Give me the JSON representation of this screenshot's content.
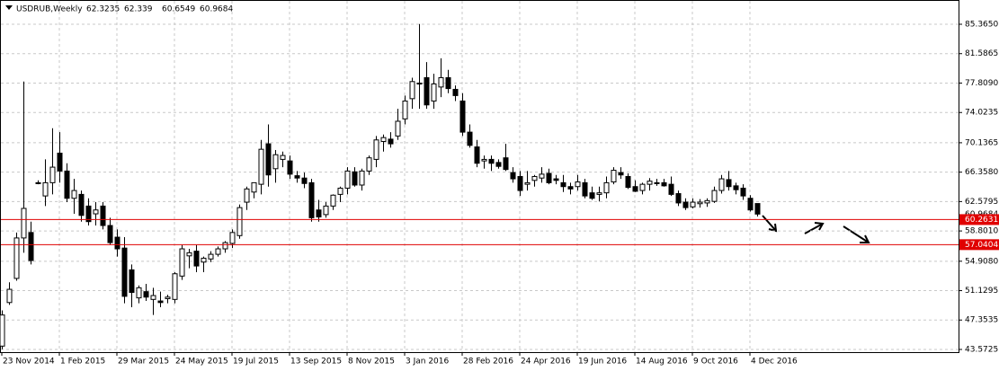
{
  "chart_data": {
    "type": "candlestick",
    "title": "USDRUB,Weekly",
    "header_values": [
      62.3235,
      62.339,
      60.6549,
      60.9684
    ],
    "categories": [
      "23 Nov 2014",
      null,
      null,
      null,
      null,
      null,
      null,
      null,
      "1 Feb 2015",
      null,
      null,
      null,
      null,
      null,
      null,
      null,
      "29 Mar 2015",
      null,
      null,
      null,
      null,
      null,
      null,
      null,
      "24 May 2015",
      null,
      null,
      null,
      null,
      null,
      null,
      null,
      "19 Jul 2015",
      null,
      null,
      null,
      null,
      null,
      null,
      null,
      "13 Sep 2015",
      null,
      null,
      null,
      null,
      null,
      null,
      null,
      "8 Nov 2015",
      null,
      null,
      null,
      null,
      null,
      null,
      null,
      "3 Jan 2016",
      null,
      null,
      null,
      null,
      null,
      null,
      null,
      "28 Feb 2016",
      null,
      null,
      null,
      null,
      null,
      null,
      null,
      "24 Apr 2016",
      null,
      null,
      null,
      null,
      null,
      null,
      null,
      "19 Jun 2016",
      null,
      null,
      null,
      null,
      null,
      null,
      null,
      "14 Aug 2016",
      null,
      null,
      null,
      null,
      null,
      null,
      null,
      "9 Oct 2016",
      null,
      null,
      null,
      null,
      null,
      null,
      null,
      "4 Dec 2016",
      null
    ],
    "open": [
      44.0,
      49.6,
      52.7,
      57.9,
      58.6,
      65.0,
      63.3,
      65.0,
      68.8,
      66.5,
      63.0,
      63.5,
      62.0,
      61.0,
      62.0,
      59.5,
      58.0,
      56.6,
      53.8,
      50.2,
      51.0,
      50.0,
      49.8,
      50.1,
      50.0,
      53.0,
      55.6,
      56.2,
      54.8,
      55.2,
      55.8,
      56.5,
      57.2,
      58.2,
      62.5,
      63.8,
      64.8,
      70.0,
      66.8,
      68.0,
      67.8,
      65.9,
      65.6,
      65.0,
      61.5,
      60.9,
      62.0,
      63.5,
      64.3,
      66.4,
      64.7,
      66.5,
      68.0,
      70.3,
      70.6,
      71.0,
      73.2,
      75.8,
      77.8,
      78.5,
      75.5,
      77.3,
      78.5,
      77.0,
      75.5,
      71.5,
      69.6,
      67.8,
      68.0,
      67.6,
      68.2,
      66.3,
      65.8,
      64.8,
      65.3,
      65.6,
      66.2,
      65.5,
      65.0,
      64.5,
      64.5,
      65.0,
      63.7,
      63.5,
      63.7,
      65.1,
      66.3,
      65.8,
      64.5,
      64.0,
      64.8,
      65.0,
      65.0,
      64.8,
      63.6,
      62.5,
      61.9,
      62.3,
      62.4,
      62.6,
      64.0,
      65.4,
      64.6,
      64.3,
      63.0,
      62.3235
    ],
    "high": [
      48.6,
      52.2,
      58.6,
      78.0,
      60.0,
      65.3,
      68.0,
      72.0,
      71.5,
      67.5,
      65.5,
      64.0,
      63.0,
      62.5,
      62.5,
      60.5,
      59.0,
      58.0,
      54.5,
      51.8,
      52.0,
      51.5,
      51.0,
      50.6,
      53.5,
      57.0,
      56.5,
      57.0,
      55.5,
      56.2,
      56.8,
      57.5,
      59.0,
      62.2,
      64.5,
      65.0,
      70.5,
      72.5,
      69.2,
      69.0,
      68.5,
      66.5,
      66.3,
      65.5,
      62.8,
      62.5,
      63.5,
      64.5,
      67.0,
      67.0,
      66.8,
      68.5,
      71.0,
      71.2,
      71.5,
      74.5,
      76.2,
      78.5,
      85.4,
      80.5,
      79.0,
      81.0,
      79.5,
      77.5,
      76.5,
      72.5,
      70.5,
      68.5,
      68.5,
      68.0,
      70.0,
      67.0,
      66.5,
      66.5,
      66.0,
      67.0,
      66.8,
      66.0,
      66.0,
      65.0,
      66.0,
      65.5,
      64.5,
      64.5,
      65.8,
      67.0,
      67.0,
      66.2,
      65.3,
      65.0,
      65.6,
      65.5,
      65.5,
      65.8,
      64.0,
      63.0,
      63.0,
      62.9,
      63.0,
      64.5,
      66.0,
      66.5,
      65.0,
      64.8,
      63.4,
      62.339
    ],
    "low": [
      43.6,
      49.3,
      52.4,
      56.0,
      54.5,
      64.8,
      62.0,
      63.5,
      65.0,
      62.5,
      61.0,
      60.0,
      59.5,
      59.5,
      59.0,
      57.0,
      55.5,
      49.5,
      49.0,
      49.5,
      49.8,
      48.0,
      49.0,
      49.5,
      49.5,
      52.5,
      54.0,
      53.5,
      53.5,
      54.8,
      55.5,
      56.0,
      56.6,
      57.8,
      61.5,
      63.0,
      63.5,
      64.5,
      65.0,
      67.0,
      65.5,
      65.0,
      64.3,
      60.0,
      60.0,
      60.5,
      61.5,
      62.5,
      63.5,
      64.5,
      64.0,
      66.0,
      67.0,
      69.0,
      69.5,
      70.5,
      72.5,
      74.5,
      74.5,
      74.5,
      74.5,
      76.0,
      76.5,
      75.5,
      71.0,
      69.5,
      67.0,
      66.8,
      66.5,
      66.8,
      66.5,
      65.0,
      63.3,
      64.0,
      64.5,
      65.0,
      64.8,
      64.8,
      63.8,
      63.5,
      64.0,
      63.0,
      62.8,
      62.6,
      63.0,
      64.8,
      65.5,
      64.2,
      63.8,
      63.5,
      64.0,
      64.6,
      64.5,
      63.3,
      62.0,
      61.5,
      61.7,
      61.8,
      61.9,
      62.4,
      63.6,
      64.0,
      63.5,
      62.8,
      61.3,
      60.6549
    ],
    "close": [
      48.0,
      51.3,
      57.9,
      61.7,
      55.0,
      65.0,
      65.0,
      67.0,
      66.5,
      63.0,
      64.0,
      60.8,
      60.0,
      61.5,
      59.5,
      57.3,
      56.5,
      50.4,
      50.9,
      51.5,
      50.3,
      50.5,
      49.6,
      50.3,
      53.3,
      56.5,
      56.0,
      54.3,
      55.3,
      55.8,
      56.5,
      57.3,
      58.6,
      61.8,
      64.2,
      65.0,
      69.3,
      66.0,
      68.6,
      68.5,
      66.1,
      65.6,
      64.9,
      60.5,
      60.6,
      62.0,
      63.4,
      64.3,
      66.5,
      64.7,
      66.5,
      68.2,
      70.5,
      70.8,
      70.0,
      72.9,
      75.5,
      78.0,
      77.7,
      75.0,
      77.7,
      78.5,
      77.1,
      76.2,
      71.5,
      69.8,
      67.5,
      68.0,
      67.5,
      67.1,
      66.7,
      65.5,
      64.0,
      65.0,
      65.8,
      66.1,
      65.0,
      65.3,
      64.5,
      64.2,
      65.1,
      63.3,
      63.0,
      63.7,
      65.0,
      66.6,
      66.0,
      64.4,
      63.9,
      64.8,
      65.2,
      64.9,
      64.6,
      63.5,
      62.4,
      61.8,
      62.5,
      62.5,
      62.7,
      64.0,
      65.5,
      64.5,
      64.1,
      63.3,
      61.5,
      60.9684
    ],
    "up_color": "#ffffff",
    "down_color": "#000000",
    "outline_color": "#000000",
    "ylim": [
      43.226,
      88.483
    ],
    "yticks": [
      {
        "value": 85.365,
        "label": "85.3650"
      },
      81.5865,
      {
        "value": 77.809,
        "label": "77.8090"
      },
      74.0235,
      70.1365,
      {
        "value": 66.358,
        "label": "66.3580"
      },
      62.5795,
      {
        "value": 58.801,
        "label": "58.8010"
      },
      {
        "value": 54.908,
        "label": "54.9080"
      },
      51.1295,
      47.3535,
      43.5725
    ],
    "grid": true,
    "last_price": 60.9684,
    "hlines": [
      {
        "value": 60.2631,
        "color": "#e00000"
      },
      {
        "value": 57.0404,
        "color": "#e00000"
      }
    ]
  }
}
